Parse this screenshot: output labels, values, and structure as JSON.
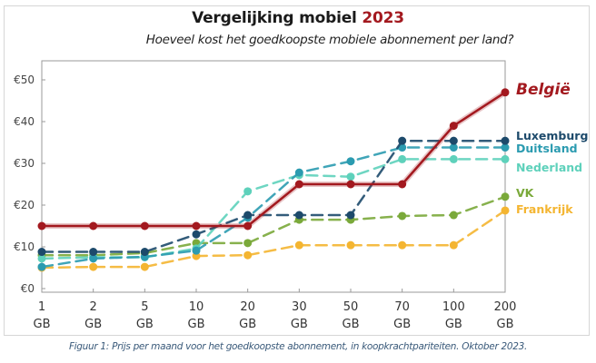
{
  "title": {
    "main": "Vergelijking mobiel",
    "year": "2023"
  },
  "subtitle": "Hoeveel kost het goedkoopste mobiele abonnement per land?",
  "caption": "Figuur 1: Prijs per maand voor het goedkoopste abonnement, in koopkrachtpariteiten. Oktober 2023.",
  "chart_data": {
    "type": "line",
    "title": "Vergelijking mobiel 2023",
    "subtitle": "Hoeveel kost het goedkoopste mobiele abonnement per land?",
    "xlabel": "",
    "ylabel": "",
    "categories": [
      "1",
      "2",
      "5",
      "10",
      "20",
      "30",
      "50",
      "70",
      "100",
      "200"
    ],
    "category_unit": "GB",
    "ylim": [
      0,
      55
    ],
    "yticks": [
      0,
      10,
      20,
      30,
      40,
      50
    ],
    "ytick_labels": [
      "€0",
      "€10",
      "€20",
      "€30",
      "€40",
      "€50"
    ],
    "grid": false,
    "legend": "direct labels at right end of lines",
    "series": [
      {
        "name": "België",
        "color": "#a3191f",
        "style": "solid",
        "values": [
          15,
          15,
          15,
          15,
          15,
          25,
          25,
          25,
          39,
          47
        ]
      },
      {
        "name": "Luxemburg",
        "color": "#1d4a6b",
        "style": "dashed",
        "values": [
          8.8,
          8.8,
          8.8,
          13,
          17.6,
          17.6,
          17.6,
          35.4,
          35.4,
          35.4
        ]
      },
      {
        "name": "Duitsland",
        "color": "#2b9bb0",
        "style": "dashed",
        "values": [
          5.2,
          7.2,
          7.6,
          9.1,
          17,
          27.8,
          30.5,
          33.8,
          33.8,
          33.8
        ]
      },
      {
        "name": "Nederland",
        "color": "#5ed1bb",
        "style": "dashed",
        "values": [
          7.2,
          7.5,
          7.5,
          9.6,
          23.3,
          27.2,
          26.8,
          31,
          31,
          31
        ]
      },
      {
        "name": "VK",
        "color": "#7aa93a",
        "style": "dashed",
        "values": [
          8,
          8,
          8.5,
          10.9,
          10.9,
          16.5,
          16.5,
          17.4,
          17.6,
          22
        ]
      },
      {
        "name": "Frankrijk",
        "color": "#f4b531",
        "style": "dashed",
        "values": [
          5,
          5.2,
          5.2,
          7.8,
          8,
          10.4,
          10.4,
          10.4,
          10.4,
          18.7
        ]
      }
    ]
  }
}
